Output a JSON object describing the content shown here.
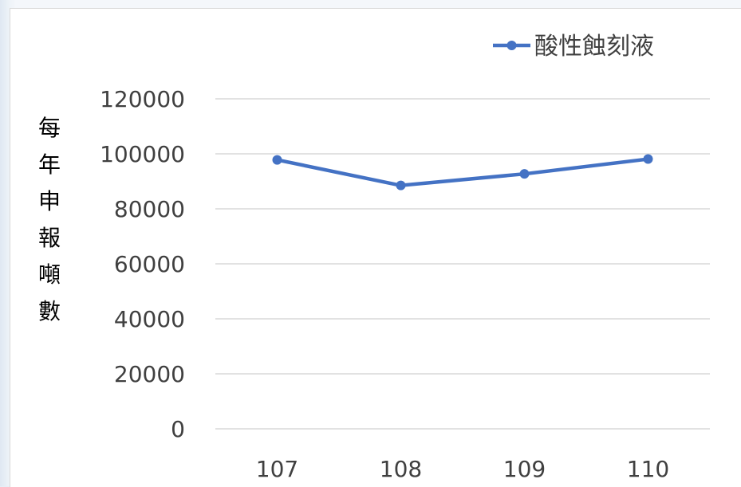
{
  "chart_data": {
    "type": "line",
    "title": "",
    "xlabel": "",
    "ylabel": "每年申報噸數",
    "categories": [
      "107",
      "108",
      "109",
      "110"
    ],
    "series": [
      {
        "name": "酸性蝕刻液",
        "values": [
          97800,
          88500,
          92700,
          98100
        ],
        "color": "#4472c4"
      }
    ],
    "ylim": [
      0,
      120000
    ],
    "yticks": [
      "0",
      "20000",
      "40000",
      "60000",
      "80000",
      "100000",
      "120000"
    ],
    "grid": true,
    "legend_position": "top-right"
  }
}
